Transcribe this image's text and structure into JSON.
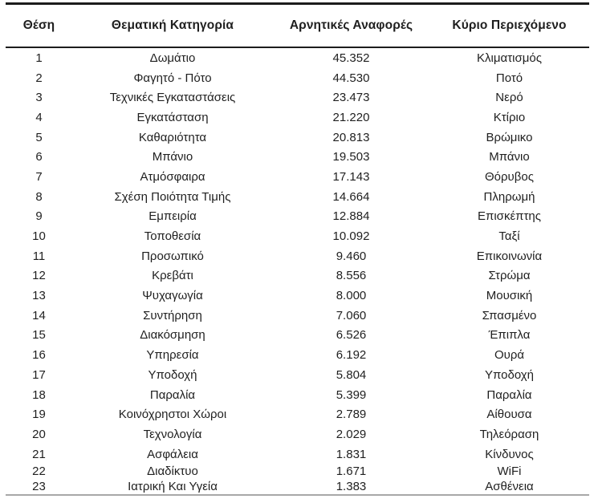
{
  "table": {
    "columns": [
      {
        "key": "position",
        "label": "Θέση"
      },
      {
        "key": "category",
        "label": "Θεματική Κατηγορία"
      },
      {
        "key": "mentions",
        "label": "Αρνητικές Αναφορές"
      },
      {
        "key": "content",
        "label": "Κύριο Περιεχόμενο"
      }
    ],
    "rows": [
      {
        "position": "1",
        "category": "Δωμάτιο",
        "mentions": "45.352",
        "content": "Κλιματισμός"
      },
      {
        "position": "2",
        "category": "Φαγητό - Πότο",
        "mentions": "44.530",
        "content": "Ποτό"
      },
      {
        "position": "3",
        "category": "Τεχνικές Εγκαταστάσεις",
        "mentions": "23.473",
        "content": "Νερό"
      },
      {
        "position": "4",
        "category": "Εγκατάσταση",
        "mentions": "21.220",
        "content": "Κτίριο"
      },
      {
        "position": "5",
        "category": "Καθαριότητα",
        "mentions": "20.813",
        "content": "Βρώμικο"
      },
      {
        "position": "6",
        "category": "Μπάνιο",
        "mentions": "19.503",
        "content": "Μπάνιο"
      },
      {
        "position": "7",
        "category": "Ατμόσφαιρα",
        "mentions": "17.143",
        "content": "Θόρυβος"
      },
      {
        "position": "8",
        "category": "Σχέση Ποιότητα Τιμής",
        "mentions": "14.664",
        "content": "Πληρωμή"
      },
      {
        "position": "9",
        "category": "Εμπειρία",
        "mentions": "12.884",
        "content": "Επισκέπτης"
      },
      {
        "position": "10",
        "category": "Τοποθεσία",
        "mentions": "10.092",
        "content": "Ταξί"
      },
      {
        "position": "11",
        "category": "Προσωπικό",
        "mentions": "9.460",
        "content": "Επικοινωνία"
      },
      {
        "position": "12",
        "category": "Κρεβάτι",
        "mentions": "8.556",
        "content": "Στρώμα"
      },
      {
        "position": "13",
        "category": "Ψυχαγωγία",
        "mentions": "8.000",
        "content": "Μουσική"
      },
      {
        "position": "14",
        "category": "Συντήρηση",
        "mentions": "7.060",
        "content": "Σπασμένο"
      },
      {
        "position": "15",
        "category": "Διακόσμηση",
        "mentions": "6.526",
        "content": "Έπιπλα"
      },
      {
        "position": "16",
        "category": "Υπηρεσία",
        "mentions": "6.192",
        "content": "Ουρά"
      },
      {
        "position": "17",
        "category": "Υποδοχή",
        "mentions": "5.804",
        "content": "Υποδοχή"
      },
      {
        "position": "18",
        "category": "Παραλία",
        "mentions": "5.399",
        "content": "Παραλία"
      },
      {
        "position": "19",
        "category": "Κοινόχρηστοι Χώροι",
        "mentions": "2.789",
        "content": "Αίθουσα"
      },
      {
        "position": "20",
        "category": "Τεχνολογία",
        "mentions": "2.029",
        "content": "Τηλεόραση"
      },
      {
        "position": "21",
        "category": "Ασφάλεια",
        "mentions": "1.831",
        "content": "Κίνδυνος"
      },
      {
        "position": "22",
        "category": "Διαδίκτυο",
        "mentions": "1.671",
        "content": "WiFi"
      },
      {
        "position": "23",
        "category": "Ιατρική Και Υγεία",
        "mentions": "1.383",
        "content": "Ασθένεια"
      }
    ]
  },
  "colors": {
    "text": "#1f1f1f",
    "rule": "#1c1c1c",
    "bottom_rule": "#a8a8a8",
    "background": "#ffffff"
  }
}
